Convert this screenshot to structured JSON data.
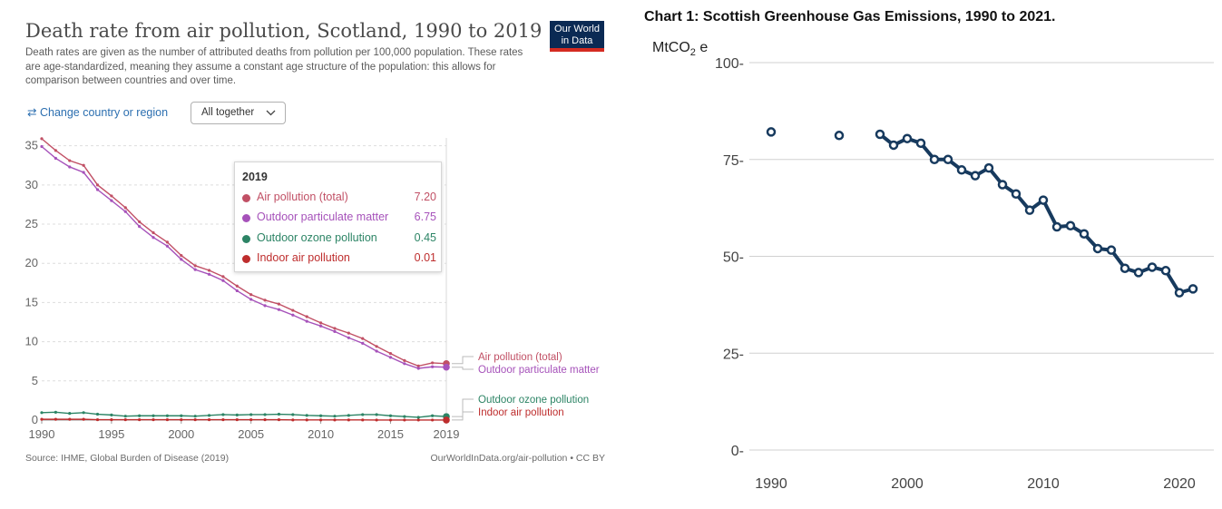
{
  "left_chart": {
    "title": "Death rate from air pollution, Scotland, 1990 to 2019",
    "subtitle": "Death rates are given as the number of attributed deaths from pollution per 100,000 population. These rates are age-standardized, meaning they assume a constant age structure of the population: this allows for comparison between countries and over time.",
    "logo_line1": "Our World",
    "logo_line2": "in Data",
    "change_link_icon": "swap-arrows-icon",
    "change_link_label": "Change country or region",
    "dropdown_label": "All together",
    "dropdown_icon": "chevron-down-icon",
    "tooltip": {
      "year": "2019",
      "rows": [
        {
          "label": "Air pollution (total)",
          "value": "7.20",
          "color": "#c15065"
        },
        {
          "label": "Outdoor particulate matter",
          "value": "6.75",
          "color": "#a652ba"
        },
        {
          "label": "Outdoor ozone pollution",
          "value": "0.45",
          "color": "#2c8465"
        },
        {
          "label": "Indoor air pollution",
          "value": "0.01",
          "color": "#be2d2d"
        }
      ]
    },
    "source": "Source: IHME, Global Burden of Disease (2019)",
    "license": "OurWorldInData.org/air-pollution • CC BY"
  },
  "right_chart": {
    "title": "Chart 1: Scottish Greenhouse Gas Emissions, 1990 to 2021.",
    "unit_main": "MtCO",
    "unit_sub": "2",
    "unit_tail": " e"
  },
  "chart_data": [
    {
      "type": "line",
      "title": "Death rate from air pollution, Scotland, 1990 to 2019",
      "x": [
        1990,
        1991,
        1992,
        1993,
        1994,
        1995,
        1996,
        1997,
        1998,
        1999,
        2000,
        2001,
        2002,
        2003,
        2004,
        2005,
        2006,
        2007,
        2008,
        2009,
        2010,
        2011,
        2012,
        2013,
        2014,
        2015,
        2016,
        2017,
        2018,
        2019
      ],
      "xticks": [
        1990,
        1995,
        2000,
        2005,
        2010,
        2015,
        2019
      ],
      "yticks": [
        0,
        5,
        10,
        15,
        20,
        25,
        30,
        35
      ],
      "ylim": [
        0,
        36
      ],
      "grid": "horizontal dashed",
      "legend": "right end labels",
      "series": [
        {
          "name": "Air pollution (total)",
          "color": "#c15065",
          "values": [
            35.9,
            34.4,
            33.1,
            32.5,
            30.0,
            28.6,
            27.1,
            25.3,
            23.9,
            22.7,
            21.0,
            19.7,
            19.1,
            18.3,
            17.1,
            16.0,
            15.3,
            14.8,
            14.0,
            13.2,
            12.4,
            11.7,
            11.1,
            10.4,
            9.4,
            8.5,
            7.6,
            6.9,
            7.3,
            7.2
          ]
        },
        {
          "name": "Outdoor particulate matter",
          "color": "#a652ba",
          "values": [
            34.9,
            33.4,
            32.3,
            31.6,
            29.4,
            28.0,
            26.6,
            24.7,
            23.3,
            22.2,
            20.5,
            19.2,
            18.6,
            17.8,
            16.5,
            15.4,
            14.6,
            14.1,
            13.4,
            12.6,
            12.0,
            11.3,
            10.5,
            9.8,
            8.8,
            8.0,
            7.2,
            6.6,
            6.8,
            6.75
          ]
        },
        {
          "name": "Outdoor ozone pollution",
          "color": "#2c8465",
          "values": [
            0.95,
            1.0,
            0.85,
            0.95,
            0.75,
            0.65,
            0.5,
            0.55,
            0.55,
            0.55,
            0.55,
            0.5,
            0.6,
            0.7,
            0.65,
            0.7,
            0.7,
            0.75,
            0.7,
            0.6,
            0.55,
            0.5,
            0.6,
            0.7,
            0.7,
            0.55,
            0.45,
            0.35,
            0.55,
            0.45
          ]
        },
        {
          "name": "Indoor air pollution",
          "color": "#be2d2d",
          "values": [
            0.1,
            0.1,
            0.1,
            0.1,
            0.05,
            0.05,
            0.05,
            0.05,
            0.05,
            0.05,
            0.05,
            0.05,
            0.05,
            0.05,
            0.05,
            0.05,
            0.05,
            0.05,
            0.02,
            0.02,
            0.02,
            0.02,
            0.02,
            0.02,
            0.01,
            0.01,
            0.01,
            0.01,
            0.01,
            0.01
          ]
        }
      ]
    },
    {
      "type": "line",
      "title": "Chart 1: Scottish Greenhouse Gas Emissions, 1990 to 2021.",
      "ylabel": "MtCO2 e",
      "xticks": [
        1990,
        2000,
        2010,
        2020
      ],
      "yticks": [
        0,
        25,
        50,
        75,
        100
      ],
      "ylim": [
        0,
        100
      ],
      "xlim": [
        1988,
        2023
      ],
      "grid": "horizontal solid",
      "color": "#173a5e",
      "points": [
        {
          "x": 1990,
          "y": 82.1
        },
        {
          "x": 1995,
          "y": 81.2
        },
        {
          "x": 1998,
          "y": 81.5
        },
        {
          "x": 1999,
          "y": 78.7
        },
        {
          "x": 2000,
          "y": 80.4
        },
        {
          "x": 2001,
          "y": 79.2
        },
        {
          "x": 2002,
          "y": 75.0
        },
        {
          "x": 2003,
          "y": 75.0
        },
        {
          "x": 2004,
          "y": 72.3
        },
        {
          "x": 2005,
          "y": 70.8
        },
        {
          "x": 2006,
          "y": 72.8
        },
        {
          "x": 2007,
          "y": 68.5
        },
        {
          "x": 2008,
          "y": 66.1
        },
        {
          "x": 2009,
          "y": 61.9
        },
        {
          "x": 2010,
          "y": 64.5
        },
        {
          "x": 2011,
          "y": 57.6
        },
        {
          "x": 2012,
          "y": 57.9
        },
        {
          "x": 2013,
          "y": 55.8
        },
        {
          "x": 2014,
          "y": 52.0
        },
        {
          "x": 2015,
          "y": 51.6
        },
        {
          "x": 2016,
          "y": 46.9
        },
        {
          "x": 2017,
          "y": 45.8
        },
        {
          "x": 2018,
          "y": 47.2
        },
        {
          "x": 2019,
          "y": 46.3
        },
        {
          "x": 2020,
          "y": 40.6
        },
        {
          "x": 2021,
          "y": 41.6
        }
      ],
      "connected_from": 1998
    }
  ]
}
